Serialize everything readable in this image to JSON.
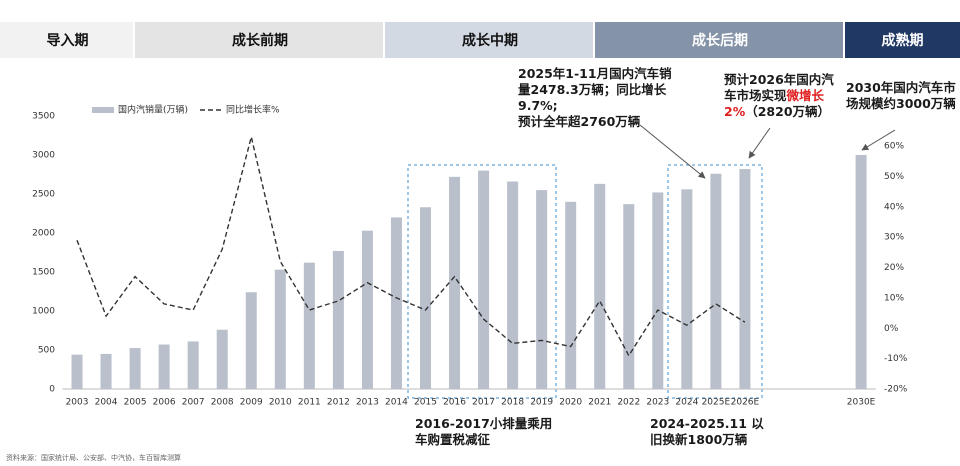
{
  "chart_data": {
    "type": "bar",
    "phases": [
      {
        "label": "导入期",
        "color": "#f2f2f2",
        "text_color": "#111111"
      },
      {
        "label": "成长前期",
        "color": "#e4e4e4",
        "text_color": "#111111"
      },
      {
        "label": "成长中期",
        "color": "#d3d9e2",
        "text_color": "#111111"
      },
      {
        "label": "成长后期",
        "color": "#8593a8",
        "text_color": "#ffffff"
      },
      {
        "label": "成熟期",
        "color": "#1f3864",
        "text_color": "#ffffff"
      }
    ],
    "categories": [
      "2003",
      "2004",
      "2005",
      "2006",
      "2007",
      "2008",
      "2009",
      "2010",
      "2011",
      "2012",
      "2013",
      "2014",
      "2015",
      "2016",
      "2017",
      "2018",
      "2019",
      "2020",
      "2021",
      "2022",
      "2023",
      "2024",
      "2025E",
      "2026E",
      null,
      null,
      null,
      "2030E"
    ],
    "series": [
      {
        "name": "国内汽销量(万辆)",
        "type": "bar",
        "color": "#b9c0cc",
        "values": [
          440,
          450,
          525,
          570,
          610,
          760,
          1240,
          1530,
          1620,
          1770,
          2030,
          2200,
          2330,
          2720,
          2800,
          2660,
          2550,
          2400,
          2630,
          2370,
          2520,
          2560,
          2760,
          2820,
          null,
          null,
          null,
          3000
        ]
      },
      {
        "name": "同比增长率%",
        "type": "line",
        "axis": "y2",
        "color": "#333333",
        "dashed": true,
        "values": [
          29,
          4,
          17,
          8,
          6,
          26,
          63,
          22,
          6,
          9,
          15,
          10,
          6,
          17,
          3,
          -5,
          -4,
          -6,
          9,
          -9,
          6,
          1,
          8,
          2,
          null,
          null,
          null,
          null
        ]
      }
    ],
    "ylim": [
      0,
      3500
    ],
    "yticks": [
      0,
      500,
      1000,
      1500,
      2000,
      2500,
      3000,
      3500
    ],
    "y2lim": [
      -20,
      60
    ],
    "y2ticks": [
      {
        "value": -20,
        "label": "-20%"
      },
      {
        "value": -10,
        "label": "-10%"
      },
      {
        "value": 0,
        "label": "0%"
      },
      {
        "value": 10,
        "label": "10%"
      },
      {
        "value": 20,
        "label": "20%"
      },
      {
        "value": 30,
        "label": "30%"
      },
      {
        "value": 40,
        "label": "40%"
      },
      {
        "value": 50,
        "label": "50%"
      },
      {
        "value": 60,
        "label": "60%"
      }
    ],
    "legend": "top-left",
    "annotations": [
      {
        "lines": [
          [
            {
              "text": "2025年1-11月国内汽车销"
            }
          ],
          [
            {
              "text": "量2478.3万辆；同比增长"
            }
          ],
          [
            {
              "text": "9.7%;"
            }
          ],
          [
            {
              "text": "预计全年超2760万辆"
            }
          ]
        ]
      },
      {
        "lines": [
          [
            {
              "text": "预计2026年国内汽"
            }
          ],
          [
            {
              "text": "车市场实现"
            },
            {
              "text": "微增长",
              "color": "#e02020"
            }
          ],
          [
            {
              "text": "2%",
              "color": "#e02020"
            },
            {
              "text": "（2820万辆）"
            }
          ]
        ]
      },
      {
        "lines": [
          [
            {
              "text": "2030年国内汽车市"
            }
          ],
          [
            {
              "text": "场规模约3000万辆"
            }
          ]
        ]
      },
      {
        "lines": [
          [
            {
              "text": "2016-2017小排量乘用"
            }
          ],
          [
            {
              "text": "车购置税减征"
            }
          ]
        ]
      },
      {
        "lines": [
          [
            {
              "text": "2024-2025.11  以"
            }
          ],
          [
            {
              "text": "旧换新1800万辆"
            }
          ]
        ]
      }
    ],
    "source": "资料来源：国家统计局、公安部、中汽协，车百智库测算"
  }
}
